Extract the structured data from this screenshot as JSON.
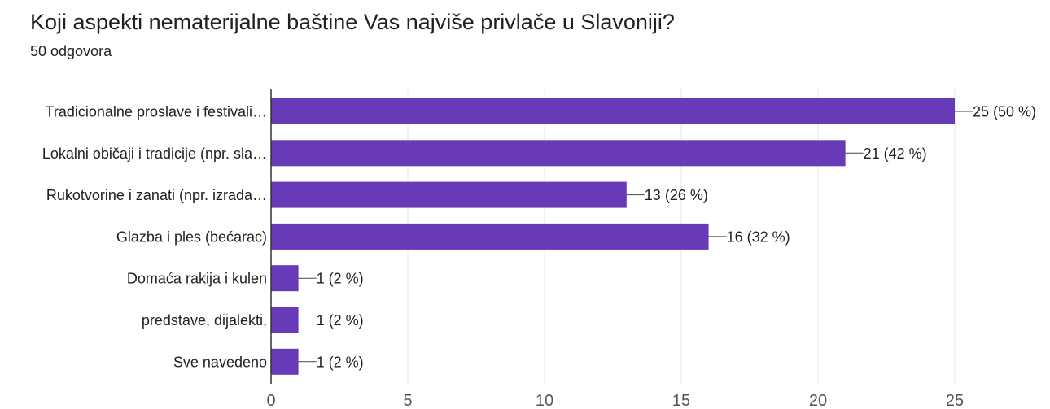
{
  "header": {
    "question": "Koji aspekti nematerijalne baštine Vas najviše privlače u Slavoniji?",
    "responses": "50 odgovora"
  },
  "chart_data": {
    "type": "bar",
    "orientation": "horizontal",
    "categories": [
      "Tradicionalne proslave i festivali…",
      "Lokalni običaji i tradicije (npr. sla…",
      "Rukotvorine i zanati (npr. izrada…",
      "Glazba i ples (bećarac)",
      "Domaća rakija i kulen",
      "predstave, dijalekti,",
      "Sve navedeno"
    ],
    "values": [
      25,
      21,
      13,
      16,
      1,
      1,
      1
    ],
    "data_labels": [
      "25 (50 %)",
      "21 (42 %)",
      "13 (26 %)",
      "16 (32 %)",
      "1 (2 %)",
      "1 (2 %)",
      "1 (2 %)"
    ],
    "xlim": [
      0,
      25
    ],
    "xticks": [
      0,
      5,
      10,
      15,
      20,
      25
    ],
    "grid": true,
    "bar_color": "#673ab7",
    "grid_color": "#e6e6e6",
    "axis_color": "#333333"
  }
}
